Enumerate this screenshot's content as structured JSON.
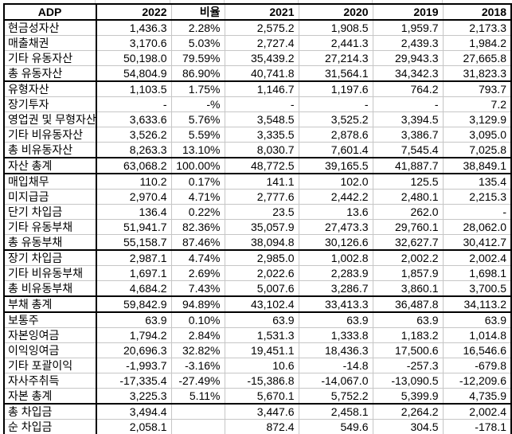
{
  "header": {
    "title": "ADP",
    "columns": [
      "2022",
      "비율",
      "2021",
      "2020",
      "2019",
      "2018"
    ]
  },
  "rows": [
    {
      "label": "현금성자산",
      "values": [
        "1,436.3",
        "2.28%",
        "2,575.2",
        "1,908.5",
        "1,959.7",
        "2,173.3"
      ],
      "section_end": false
    },
    {
      "label": "매출채권",
      "values": [
        "3,170.6",
        "5.03%",
        "2,727.4",
        "2,441.3",
        "2,439.3",
        "1,984.2"
      ],
      "section_end": false
    },
    {
      "label": "기타 유동자산",
      "values": [
        "50,198.0",
        "79.59%",
        "35,439.2",
        "27,214.3",
        "29,943.3",
        "27,665.8"
      ],
      "section_end": false
    },
    {
      "label": "총 유동자산",
      "values": [
        "54,804.9",
        "86.90%",
        "40,741.8",
        "31,564.1",
        "34,342.3",
        "31,823.3"
      ],
      "section_end": true
    },
    {
      "label": "유형자산",
      "values": [
        "1,103.5",
        "1.75%",
        "1,146.7",
        "1,197.6",
        "764.2",
        "793.7"
      ],
      "section_end": false
    },
    {
      "label": "장기투자",
      "values": [
        "-",
        "-%",
        "-",
        "-",
        "-",
        "7.2"
      ],
      "section_end": false
    },
    {
      "label": "영업권 및 무형자산",
      "values": [
        "3,633.6",
        "5.76%",
        "3,548.5",
        "3,525.2",
        "3,394.5",
        "3,129.9"
      ],
      "section_end": false
    },
    {
      "label": "기타 비유동자산",
      "values": [
        "3,526.2",
        "5.59%",
        "3,335.5",
        "2,878.6",
        "3,386.7",
        "3,095.0"
      ],
      "section_end": false
    },
    {
      "label": "총 비유동자산",
      "values": [
        "8,263.3",
        "13.10%",
        "8,030.7",
        "7,601.4",
        "7,545.4",
        "7,025.8"
      ],
      "section_end": true
    },
    {
      "label": "자산 총계",
      "values": [
        "63,068.2",
        "100.00%",
        "48,772.5",
        "39,165.5",
        "41,887.7",
        "38,849.1"
      ],
      "section_end": true
    },
    {
      "label": "매입채무",
      "values": [
        "110.2",
        "0.17%",
        "141.1",
        "102.0",
        "125.5",
        "135.4"
      ],
      "section_end": false
    },
    {
      "label": "미지급금",
      "values": [
        "2,970.4",
        "4.71%",
        "2,777.6",
        "2,442.2",
        "2,480.1",
        "2,215.3"
      ],
      "section_end": false
    },
    {
      "label": "단기 차입금",
      "values": [
        "136.4",
        "0.22%",
        "23.5",
        "13.6",
        "262.0",
        "-"
      ],
      "section_end": false
    },
    {
      "label": "기타 유동부채",
      "values": [
        "51,941.7",
        "82.36%",
        "35,057.9",
        "27,473.3",
        "29,760.1",
        "28,062.0"
      ],
      "section_end": false
    },
    {
      "label": "총 유동부채",
      "values": [
        "55,158.7",
        "87.46%",
        "38,094.8",
        "30,126.6",
        "32,627.7",
        "30,412.7"
      ],
      "section_end": true
    },
    {
      "label": "장기 차입금",
      "values": [
        "2,987.1",
        "4.74%",
        "2,985.0",
        "1,002.8",
        "2,002.2",
        "2,002.4"
      ],
      "section_end": false
    },
    {
      "label": "기타 비유동부채",
      "values": [
        "1,697.1",
        "2.69%",
        "2,022.6",
        "2,283.9",
        "1,857.9",
        "1,698.1"
      ],
      "section_end": false
    },
    {
      "label": "총 비유동부채",
      "values": [
        "4,684.2",
        "7.43%",
        "5,007.6",
        "3,286.7",
        "3,860.1",
        "3,700.5"
      ],
      "section_end": true
    },
    {
      "label": "부채 총계",
      "values": [
        "59,842.9",
        "94.89%",
        "43,102.4",
        "33,413.3",
        "36,487.8",
        "34,113.2"
      ],
      "section_end": true
    },
    {
      "label": "보통주",
      "values": [
        "63.9",
        "0.10%",
        "63.9",
        "63.9",
        "63.9",
        "63.9"
      ],
      "section_end": false
    },
    {
      "label": "자본잉여금",
      "values": [
        "1,794.2",
        "2.84%",
        "1,531.3",
        "1,333.8",
        "1,183.2",
        "1,014.8"
      ],
      "section_end": false
    },
    {
      "label": "이익잉여금",
      "values": [
        "20,696.3",
        "32.82%",
        "19,451.1",
        "18,436.3",
        "17,500.6",
        "16,546.6"
      ],
      "section_end": false
    },
    {
      "label": "기타 포괄이익",
      "values": [
        "-1,993.7",
        "-3.16%",
        "10.6",
        "-14.8",
        "-257.3",
        "-679.8"
      ],
      "section_end": false
    },
    {
      "label": "자사주취득",
      "values": [
        "-17,335.4",
        "-27.49%",
        "-15,386.8",
        "-14,067.0",
        "-13,090.5",
        "-12,209.6"
      ],
      "section_end": false
    },
    {
      "label": "자본 총계",
      "values": [
        "3,225.3",
        "5.11%",
        "5,670.1",
        "5,752.2",
        "5,399.9",
        "4,735.9"
      ],
      "section_end": true
    },
    {
      "label": "총 차입금",
      "values": [
        "3,494.4",
        "",
        "3,447.6",
        "2,458.1",
        "2,264.2",
        "2,002.4"
      ],
      "section_end": false
    },
    {
      "label": "순 차입금",
      "values": [
        "2,058.1",
        "",
        "872.4",
        "549.6",
        "304.5",
        "-178.1"
      ],
      "section_end": true
    }
  ],
  "colors": {
    "border_strong": "#000000",
    "gridline": "#c6c6c6",
    "background": "#ffffff",
    "text": "#000000"
  }
}
